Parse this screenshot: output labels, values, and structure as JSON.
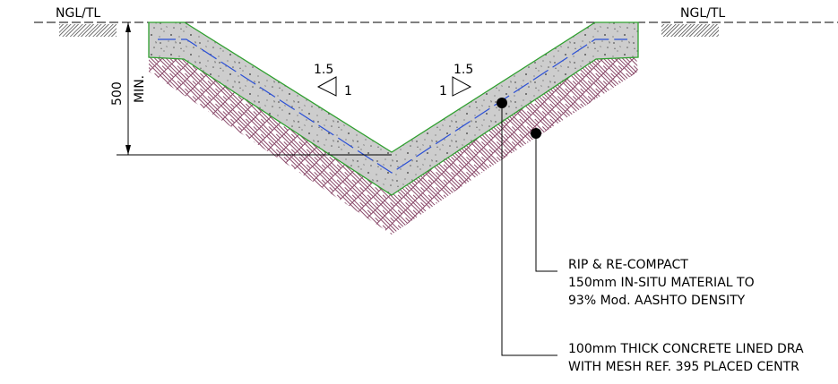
{
  "labels": {
    "ngl_left": "NGL/TL",
    "ngl_right": "NGL/TL",
    "dim_value": "500",
    "dim_note": "MIN.",
    "slope_left_run": "1.5",
    "slope_left_rise": "1",
    "slope_right_run": "1.5",
    "slope_right_rise": "1"
  },
  "callouts": {
    "rip": [
      "RIP & RE-COMPACT",
      "150mm IN-SITU MATERIAL TO",
      "93% Mod. AASHTO DENSITY"
    ],
    "concrete": [
      "100mm THICK CONCRETE LINED DRA",
      "WITH MESH REF. 395 PLACED CENTR"
    ]
  },
  "colors": {
    "line": "#000000",
    "concrete_fill": "#cdcdcd",
    "concrete_speck": "#5a5a5a",
    "concrete_outline": "#2fa02f",
    "mesh": "#2a4fd6",
    "subgrade_hatch": "#8a4a6a",
    "ground_hatch": "#444444"
  }
}
